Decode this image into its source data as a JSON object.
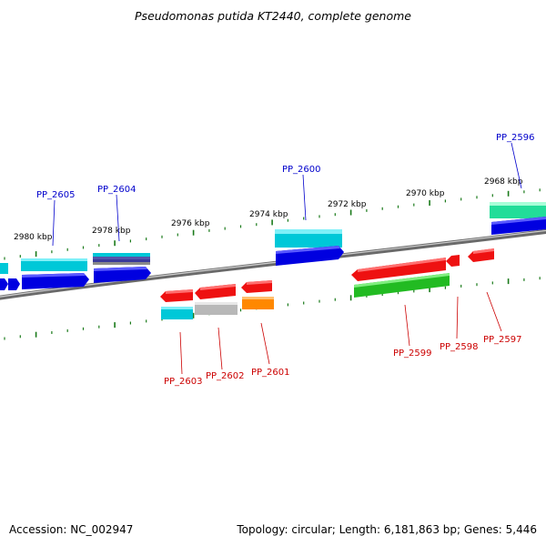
{
  "title": "Pseudomonas putida KT2440, complete genome",
  "footer": {
    "accession": "Accession: NC_002947",
    "topology": "Topology: circular; Length: 6,181,863 bp; Genes: 5,446"
  },
  "colors": {
    "backbone": "#808080",
    "ticks": "#1a7a1a",
    "forward_label": "#0000cc",
    "reverse_label": "#cc0000",
    "blue": "#0000e0",
    "cyan": "#00c8d8",
    "red": "#ee1111",
    "green": "#22bb22",
    "mint": "#22dd99",
    "silver": "#b8b8b8",
    "orange": "#ff8800",
    "purple": "#5555aa"
  },
  "scale_labels": [
    "2980 kbp",
    "2978 kbp",
    "2976 kbp",
    "2974 kbp",
    "2972 kbp",
    "2970 kbp",
    "2968 kbp"
  ],
  "forward_genes": [
    "PP_2605",
    "PP_2604",
    "PP_2600",
    "PP_2596"
  ],
  "reverse_genes": [
    "PP_2603",
    "PP_2602",
    "PP_2601",
    "PP_2599",
    "PP_2598",
    "PP_2597"
  ]
}
